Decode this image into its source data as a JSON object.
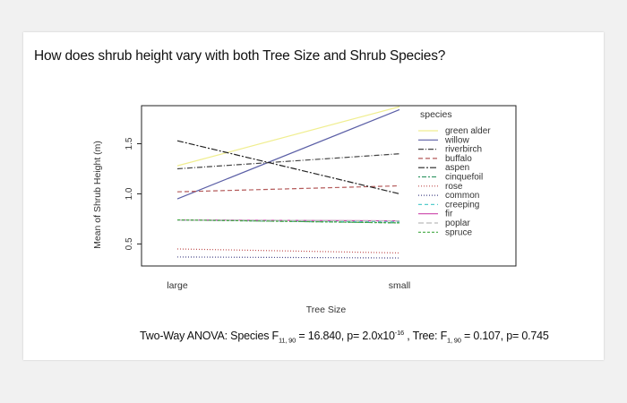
{
  "question": "How does shrub height vary with both Tree Size and Shrub Species?",
  "caption": {
    "prefix": "Two-Way ANOVA: Species  F",
    "species_df": "11, 90",
    "species_rest": " = 16.840, p= 2.0x10",
    "species_exp": "-16",
    "tree_prefix": " , Tree: F",
    "tree_df": "1, 90",
    "tree_rest": " = 0.107, p= 0.745"
  },
  "chart_data": {
    "type": "line",
    "title": "",
    "xlabel": "Tree Size",
    "ylabel": "Mean of Shrub Height (m)",
    "categories": [
      "large",
      "small"
    ],
    "yticks": [
      "0.5",
      "1.0",
      "1.5"
    ],
    "ylim": [
      0.28,
      1.88
    ],
    "legend_title": "species",
    "legend_position": "top-right",
    "grid": false,
    "series": [
      {
        "name": "green alder",
        "values": [
          1.28,
          1.87
        ],
        "color": "#f0ee90",
        "dash": ""
      },
      {
        "name": "willow",
        "values": [
          0.95,
          1.84
        ],
        "color": "#5b5fa6",
        "dash": ""
      },
      {
        "name": "riverbirch",
        "values": [
          1.25,
          1.4
        ],
        "color": "#444444",
        "dash": "6,2,1,2"
      },
      {
        "name": "buffalo",
        "values": [
          1.02,
          1.08
        ],
        "color": "#b45a5a",
        "dash": "5,3"
      },
      {
        "name": "aspen",
        "values": [
          1.53,
          1.0
        ],
        "color": "#222222",
        "dash": "7,2,2,2"
      },
      {
        "name": "cinquefoil",
        "values": [
          0.74,
          0.71
        ],
        "color": "#3a9a6a",
        "dash": "2,2,5,2"
      },
      {
        "name": "rose",
        "values": [
          0.45,
          0.41
        ],
        "color": "#c05050",
        "dash": "1,2"
      },
      {
        "name": "common",
        "values": [
          0.37,
          0.36
        ],
        "color": "#4a4a8a",
        "dash": "1,2"
      },
      {
        "name": "creeping",
        "values": [
          0.74,
          0.72
        ],
        "color": "#55cccc",
        "dash": "4,3"
      },
      {
        "name": "fir",
        "values": [
          0.74,
          0.73
        ],
        "color": "#cc44aa",
        "dash": ""
      },
      {
        "name": "poplar",
        "values": [
          0.74,
          0.73
        ],
        "color": "#bbbbbb",
        "dash": "6,3"
      },
      {
        "name": "spruce",
        "values": [
          0.74,
          0.71
        ],
        "color": "#44aa44",
        "dash": "3,2"
      }
    ]
  }
}
